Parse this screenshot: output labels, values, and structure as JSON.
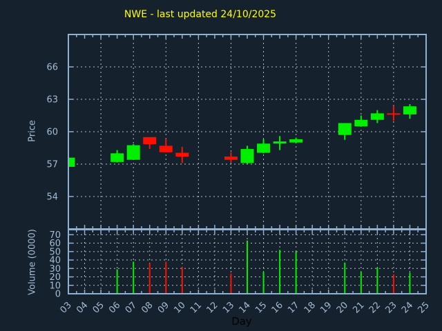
{
  "chart_data": {
    "type": "candlestick",
    "title": "NWE - last updated 24/10/2025",
    "xlabel": "Day",
    "x_range": [
      3,
      25
    ],
    "x_tick_labels": [
      "03",
      "04",
      "05",
      "06",
      "07",
      "08",
      "09",
      "10",
      "11",
      "12",
      "13",
      "14",
      "15",
      "16",
      "17",
      "18",
      "19",
      "20",
      "21",
      "22",
      "23",
      "24",
      "25"
    ],
    "panels": {
      "price": {
        "ylabel": "Price",
        "ylim": [
          51,
          69
        ],
        "yticks": [
          54,
          57,
          60,
          63,
          66
        ],
        "grid": true
      },
      "volume": {
        "ylabel": "Volume (0000)",
        "ylim": [
          0,
          76
        ],
        "yticks": [
          0,
          10,
          20,
          30,
          40,
          50,
          60,
          70
        ],
        "grid": true
      }
    },
    "colors": {
      "background": "#16212e",
      "title": "#ffff00",
      "axis": "#8fb1d4",
      "tick_labels": "#a3bcd4",
      "grid": "#b6bec6",
      "bullish": "#00f000",
      "bearish": "#ff0f00",
      "xlabel_text": "#000000"
    },
    "candles": [
      {
        "day": 3,
        "open": 56.75,
        "high": 57.6,
        "low": 56.7,
        "close": 57.6,
        "volume_0000": 0
      },
      {
        "day": 6,
        "open": 57.2,
        "high": 58.3,
        "low": 57.15,
        "close": 58.0,
        "volume_0000": 29
      },
      {
        "day": 7,
        "open": 57.4,
        "high": 58.85,
        "low": 57.4,
        "close": 58.75,
        "volume_0000": 38
      },
      {
        "day": 8,
        "open": 59.5,
        "high": 59.5,
        "low": 58.4,
        "close": 58.85,
        "volume_0000": 36
      },
      {
        "day": 9,
        "open": 58.7,
        "high": 59.35,
        "low": 58.1,
        "close": 58.1,
        "volume_0000": 38
      },
      {
        "day": 10,
        "open": 58.05,
        "high": 58.6,
        "low": 57.1,
        "close": 57.7,
        "volume_0000": 32
      },
      {
        "day": 13,
        "open": 57.7,
        "high": 58.1,
        "low": 57.15,
        "close": 57.4,
        "volume_0000": 24
      },
      {
        "day": 14,
        "open": 57.1,
        "high": 58.7,
        "low": 57.05,
        "close": 58.4,
        "volume_0000": 63
      },
      {
        "day": 15,
        "open": 58.05,
        "high": 59.3,
        "low": 58.0,
        "close": 58.9,
        "volume_0000": 26
      },
      {
        "day": 16,
        "open": 58.9,
        "high": 59.6,
        "low": 58.3,
        "close": 59.1,
        "volume_0000": 52
      },
      {
        "day": 17,
        "open": 59.0,
        "high": 59.45,
        "low": 58.95,
        "close": 59.3,
        "volume_0000": 50
      },
      {
        "day": 20,
        "open": 59.7,
        "high": 60.8,
        "low": 59.25,
        "close": 60.8,
        "volume_0000": 37
      },
      {
        "day": 21,
        "open": 60.5,
        "high": 61.5,
        "low": 60.5,
        "close": 61.1,
        "volume_0000": 26
      },
      {
        "day": 22,
        "open": 61.1,
        "high": 62.0,
        "low": 60.8,
        "close": 61.7,
        "volume_0000": 31
      },
      {
        "day": 23,
        "open": 61.7,
        "high": 62.4,
        "low": 61.0,
        "close": 61.6,
        "volume_0000": 23
      },
      {
        "day": 24,
        "open": 61.6,
        "high": 62.55,
        "low": 61.2,
        "close": 62.35,
        "volume_0000": 25
      }
    ]
  }
}
